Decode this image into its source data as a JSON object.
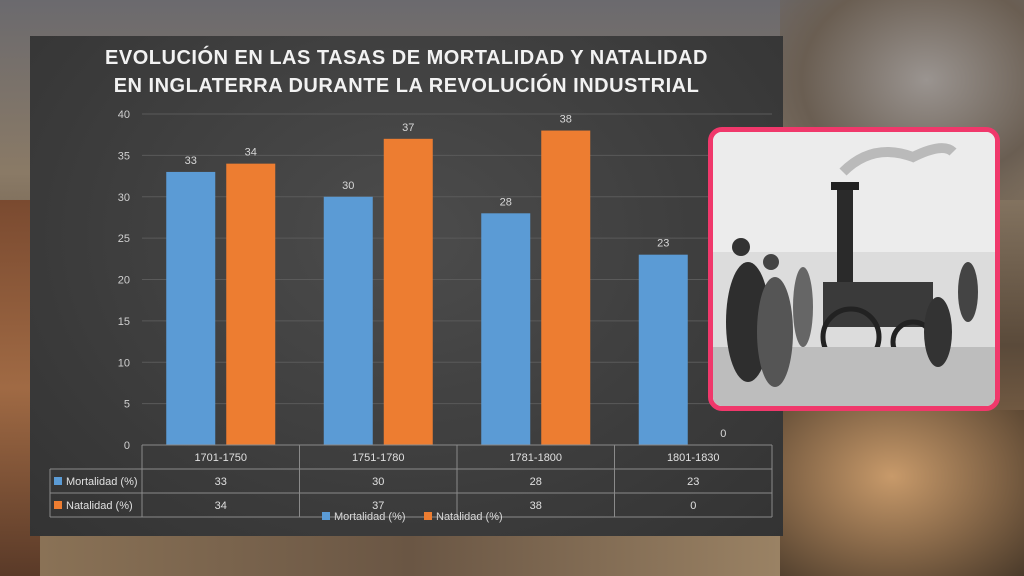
{
  "chart_data": {
    "type": "bar",
    "title_line1": "EVOLUCIÓN EN LAS TASAS DE MORTALIDAD Y NATALIDAD",
    "title_line2": "EN INGLATERRA DURANTE LA REVOLUCIÓN INDUSTRIAL",
    "categories": [
      "1701-1750",
      "1751-1780",
      "1781-1800",
      "1801-1830"
    ],
    "series": [
      {
        "name": "Mortalidad (%)",
        "values": [
          33,
          30,
          28,
          23
        ],
        "color": "#5b9bd5"
      },
      {
        "name": "Natalidad (%)",
        "values": [
          34,
          37,
          38,
          0
        ],
        "color": "#ed7d31"
      }
    ],
    "ylim": [
      0,
      40
    ],
    "yticks": [
      0,
      5,
      10,
      15,
      20,
      25,
      30,
      35,
      40
    ],
    "grid": true,
    "legend_position": "bottom",
    "data_table": true
  },
  "colors": {
    "panel": "#3d3d3d",
    "frame_border": "#f0386b"
  }
}
